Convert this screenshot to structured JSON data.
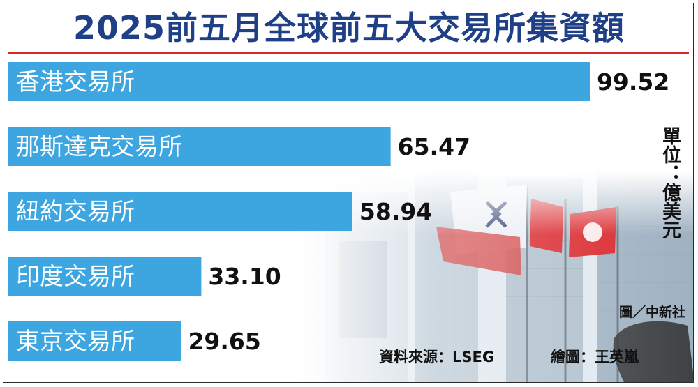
{
  "chart_data": {
    "type": "bar",
    "orientation": "horizontal",
    "title": "2025前五月全球前五大交易所集資額",
    "unit_label": "單位：億美元",
    "categories": [
      "香港交易所",
      "那斯達克交易所",
      "紐約交易所",
      "印度交易所",
      "東京交易所"
    ],
    "values": [
      99.52,
      65.47,
      58.94,
      33.1,
      29.65
    ],
    "value_labels": [
      "99.52",
      "65.47",
      "58.94",
      "33.10",
      "29.65"
    ],
    "xlim": [
      0,
      100
    ],
    "grid": false,
    "legend": "none"
  },
  "credits": {
    "photo": "圖／中新社",
    "source": "資料來源：LSEG",
    "drawing": "繪圖：王英嵐"
  },
  "colors": {
    "bar": "#3da6e0",
    "title": "#1f3f86",
    "rule": "#d42a2a"
  }
}
